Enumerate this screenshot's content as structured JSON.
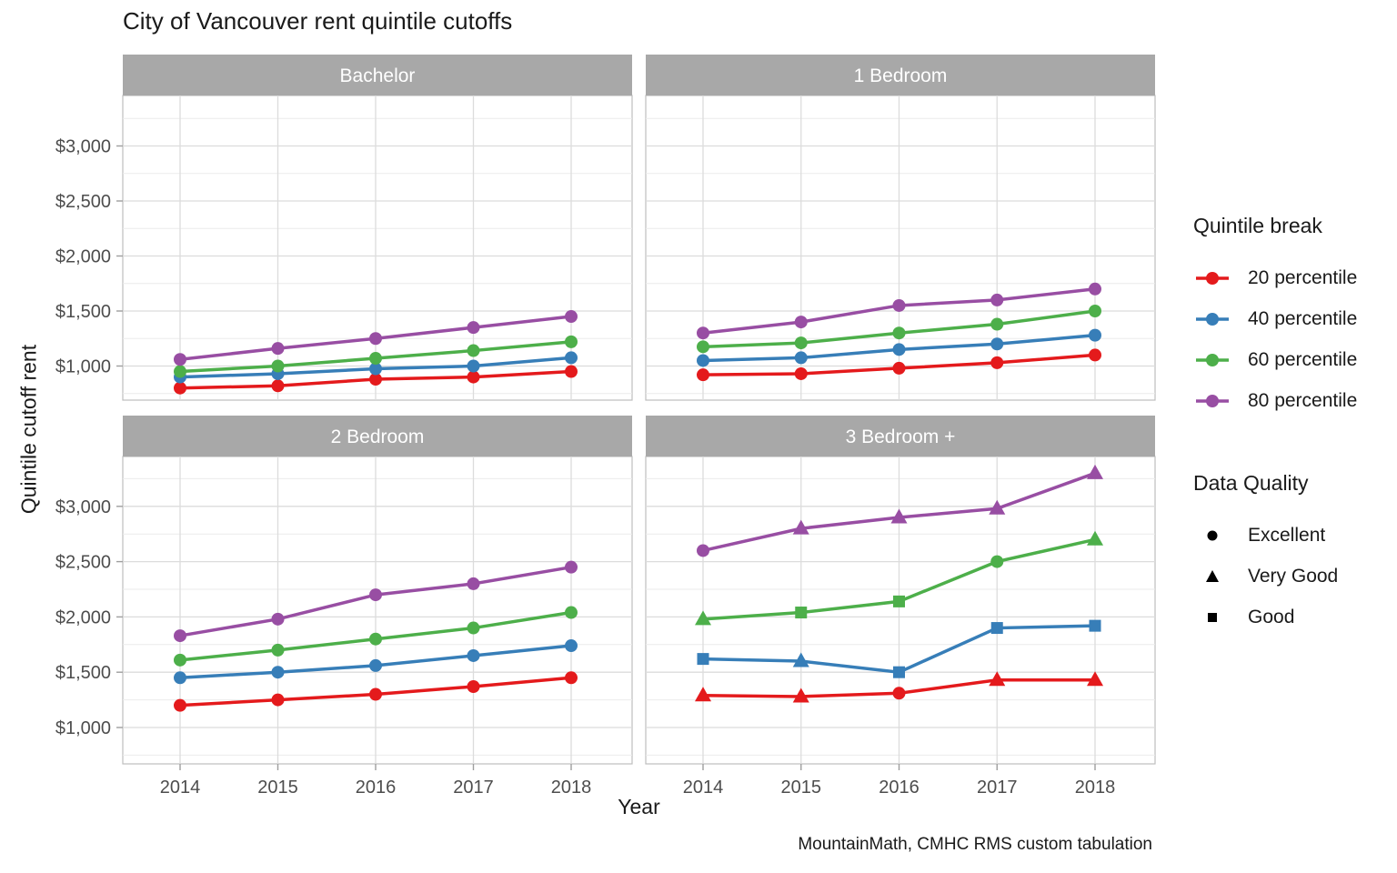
{
  "title": "City of Vancouver rent quintile cutoffs",
  "caption": "MountainMath, CMHC RMS custom tabulation",
  "axes": {
    "x_label": "Year",
    "y_label": "Quintile cutoff rent"
  },
  "legend": {
    "quintile": {
      "title": "Quintile break",
      "items": [
        {
          "label": "20 percentile",
          "color": "#E41A1C"
        },
        {
          "label": "40 percentile",
          "color": "#377EB8"
        },
        {
          "label": "60 percentile",
          "color": "#4DAF4A"
        },
        {
          "label": "80 percentile",
          "color": "#984EA3"
        }
      ]
    },
    "quality": {
      "title": "Data Quality",
      "items": [
        {
          "label": "Excellent",
          "shape": "circle"
        },
        {
          "label": "Very Good",
          "shape": "triangle"
        },
        {
          "label": "Good",
          "shape": "square"
        }
      ]
    }
  },
  "chart_data": {
    "type": "line",
    "x": [
      2014,
      2015,
      2016,
      2017,
      2018
    ],
    "x_ticks": [
      "2014",
      "2015",
      "2016",
      "2017",
      "2018"
    ],
    "y_ticks": [
      {
        "value": 1000,
        "label": "$1,000"
      },
      {
        "value": 1500,
        "label": "$1,500"
      },
      {
        "value": 2000,
        "label": "$2,000"
      },
      {
        "value": 2500,
        "label": "$2,500"
      },
      {
        "value": 3000,
        "label": "$3,000"
      }
    ],
    "y_minor": [
      750,
      1250,
      1750,
      2250,
      2750,
      3250
    ],
    "ylim": [
      690,
      3450
    ],
    "grid": true,
    "legend_position": "right",
    "quality_shape_map": {
      "Excellent": "circle",
      "Very Good": "triangle",
      "Good": "square"
    },
    "facets": [
      {
        "label": "Bachelor",
        "series": [
          {
            "name": "20 percentile",
            "color": "#E41A1C",
            "values": [
              800,
              820,
              880,
              900,
              950
            ],
            "quality": [
              "Excellent",
              "Excellent",
              "Excellent",
              "Excellent",
              "Excellent"
            ]
          },
          {
            "name": "40 percentile",
            "color": "#377EB8",
            "values": [
              900,
              930,
              975,
              1000,
              1075
            ],
            "quality": [
              "Excellent",
              "Excellent",
              "Excellent",
              "Excellent",
              "Excellent"
            ]
          },
          {
            "name": "60 percentile",
            "color": "#4DAF4A",
            "values": [
              950,
              1000,
              1070,
              1140,
              1220
            ],
            "quality": [
              "Excellent",
              "Excellent",
              "Excellent",
              "Excellent",
              "Excellent"
            ]
          },
          {
            "name": "80 percentile",
            "color": "#984EA3",
            "values": [
              1060,
              1160,
              1250,
              1350,
              1450
            ],
            "quality": [
              "Excellent",
              "Excellent",
              "Excellent",
              "Excellent",
              "Excellent"
            ]
          }
        ]
      },
      {
        "label": "1 Bedroom",
        "series": [
          {
            "name": "20 percentile",
            "color": "#E41A1C",
            "values": [
              920,
              930,
              980,
              1030,
              1100
            ],
            "quality": [
              "Excellent",
              "Excellent",
              "Excellent",
              "Excellent",
              "Excellent"
            ]
          },
          {
            "name": "40 percentile",
            "color": "#377EB8",
            "values": [
              1050,
              1075,
              1150,
              1200,
              1280
            ],
            "quality": [
              "Excellent",
              "Excellent",
              "Excellent",
              "Excellent",
              "Excellent"
            ]
          },
          {
            "name": "60 percentile",
            "color": "#4DAF4A",
            "values": [
              1175,
              1210,
              1300,
              1380,
              1500
            ],
            "quality": [
              "Excellent",
              "Excellent",
              "Excellent",
              "Excellent",
              "Excellent"
            ]
          },
          {
            "name": "80 percentile",
            "color": "#984EA3",
            "values": [
              1300,
              1400,
              1550,
              1600,
              1700
            ],
            "quality": [
              "Excellent",
              "Excellent",
              "Excellent",
              "Excellent",
              "Excellent"
            ]
          }
        ]
      },
      {
        "label": "2 Bedroom",
        "series": [
          {
            "name": "20 percentile",
            "color": "#E41A1C",
            "values": [
              1200,
              1250,
              1300,
              1370,
              1450
            ],
            "quality": [
              "Excellent",
              "Excellent",
              "Excellent",
              "Excellent",
              "Excellent"
            ]
          },
          {
            "name": "40 percentile",
            "color": "#377EB8",
            "values": [
              1450,
              1500,
              1560,
              1650,
              1740
            ],
            "quality": [
              "Excellent",
              "Excellent",
              "Excellent",
              "Excellent",
              "Excellent"
            ]
          },
          {
            "name": "60 percentile",
            "color": "#4DAF4A",
            "values": [
              1610,
              1700,
              1800,
              1900,
              2040
            ],
            "quality": [
              "Excellent",
              "Excellent",
              "Excellent",
              "Excellent",
              "Excellent"
            ]
          },
          {
            "name": "80 percentile",
            "color": "#984EA3",
            "values": [
              1830,
              1980,
              2200,
              2300,
              2450
            ],
            "quality": [
              "Excellent",
              "Excellent",
              "Excellent",
              "Excellent",
              "Excellent"
            ]
          }
        ]
      },
      {
        "label": "3 Bedroom +",
        "series": [
          {
            "name": "20 percentile",
            "color": "#E41A1C",
            "values": [
              1290,
              1280,
              1310,
              1430,
              1430
            ],
            "quality": [
              "Very Good",
              "Very Good",
              "Excellent",
              "Very Good",
              "Very Good"
            ]
          },
          {
            "name": "40 percentile",
            "color": "#377EB8",
            "values": [
              1620,
              1600,
              1500,
              1900,
              1920
            ],
            "quality": [
              "Good",
              "Very Good",
              "Good",
              "Good",
              "Good"
            ]
          },
          {
            "name": "60 percentile",
            "color": "#4DAF4A",
            "values": [
              1980,
              2040,
              2140,
              2500,
              2700
            ],
            "quality": [
              "Very Good",
              "Good",
              "Good",
              "Excellent",
              "Very Good"
            ]
          },
          {
            "name": "80 percentile",
            "color": "#984EA3",
            "values": [
              2600,
              2800,
              2900,
              2980,
              3300
            ],
            "quality": [
              "Excellent",
              "Very Good",
              "Very Good",
              "Very Good",
              "Very Good"
            ]
          }
        ]
      }
    ]
  }
}
